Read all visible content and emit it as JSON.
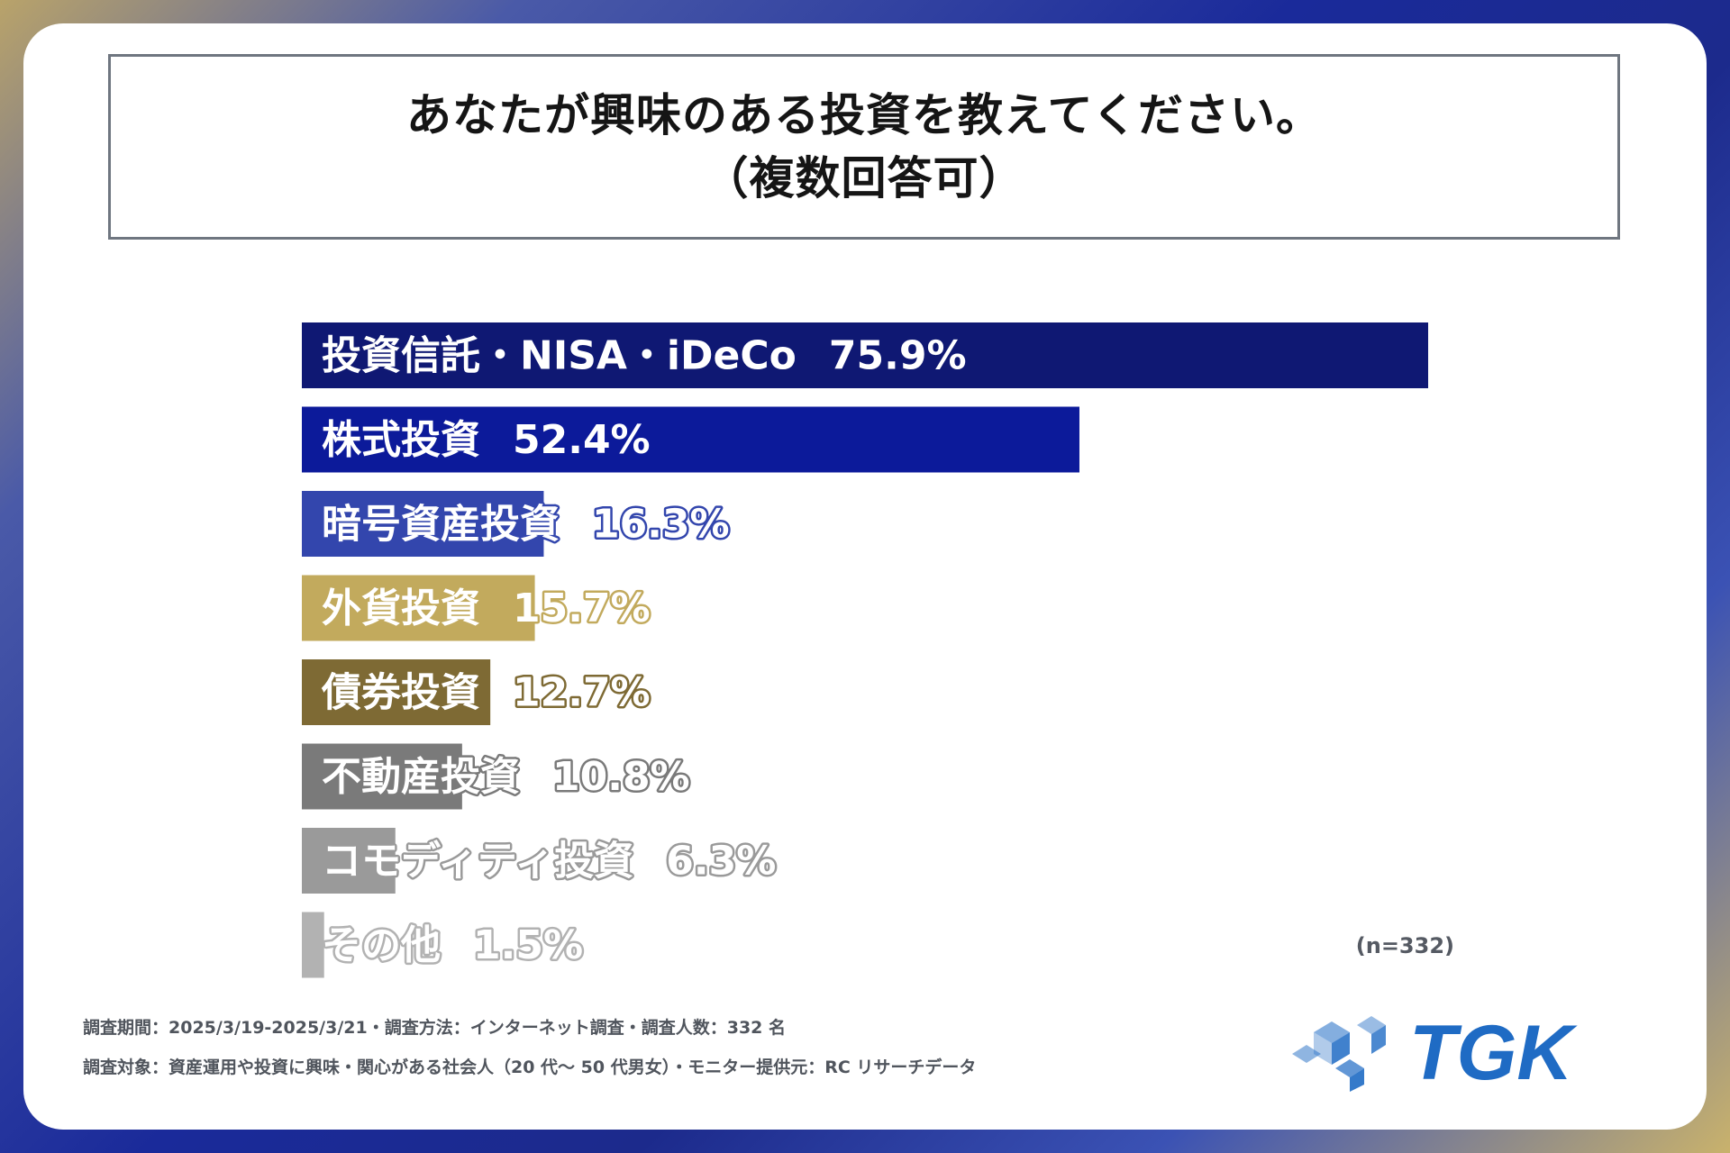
{
  "title": {
    "line1": "あなたが興味のある投資を教えてください。",
    "line2": "（複数回答可）"
  },
  "chart_data": {
    "type": "bar",
    "orientation": "horizontal",
    "categories": [
      "投資信託・NISA・iDeCo",
      "株式投資",
      "暗号資産投資",
      "外貨投資",
      "債券投資",
      "不動産投資",
      "コモディティ投資",
      "その他"
    ],
    "values": [
      75.9,
      52.4,
      16.3,
      15.7,
      12.7,
      10.8,
      6.3,
      1.5
    ],
    "value_labels": [
      "75.9%",
      "52.4%",
      "16.3%",
      "15.7%",
      "12.7%",
      "10.8%",
      "6.3%",
      "1.5%"
    ],
    "bar_colors": [
      "#0f1873",
      "#0c1a9a",
      "#3346ad",
      "#c2aa5d",
      "#7e6a34",
      "#7a7a7a",
      "#9a9a9a",
      "#b2b2b2"
    ],
    "xlim": [
      0,
      75.9
    ],
    "grid": false,
    "legend": "none"
  },
  "sample_size": "(n=332)",
  "footer": {
    "line1": "調査期間：2025/3/19-2025/3/21・調査方法：インターネット調査・調査人数：332 名",
    "line2": "調査対象：資産運用や投資に興味・関心がある社会人（20 代～ 50 代男女）・モニター提供元：RC リサーチデータ"
  },
  "logo": {
    "text": "TGK",
    "icon": "tgk-cube-logo-icon",
    "color": "#1f6bc4"
  }
}
